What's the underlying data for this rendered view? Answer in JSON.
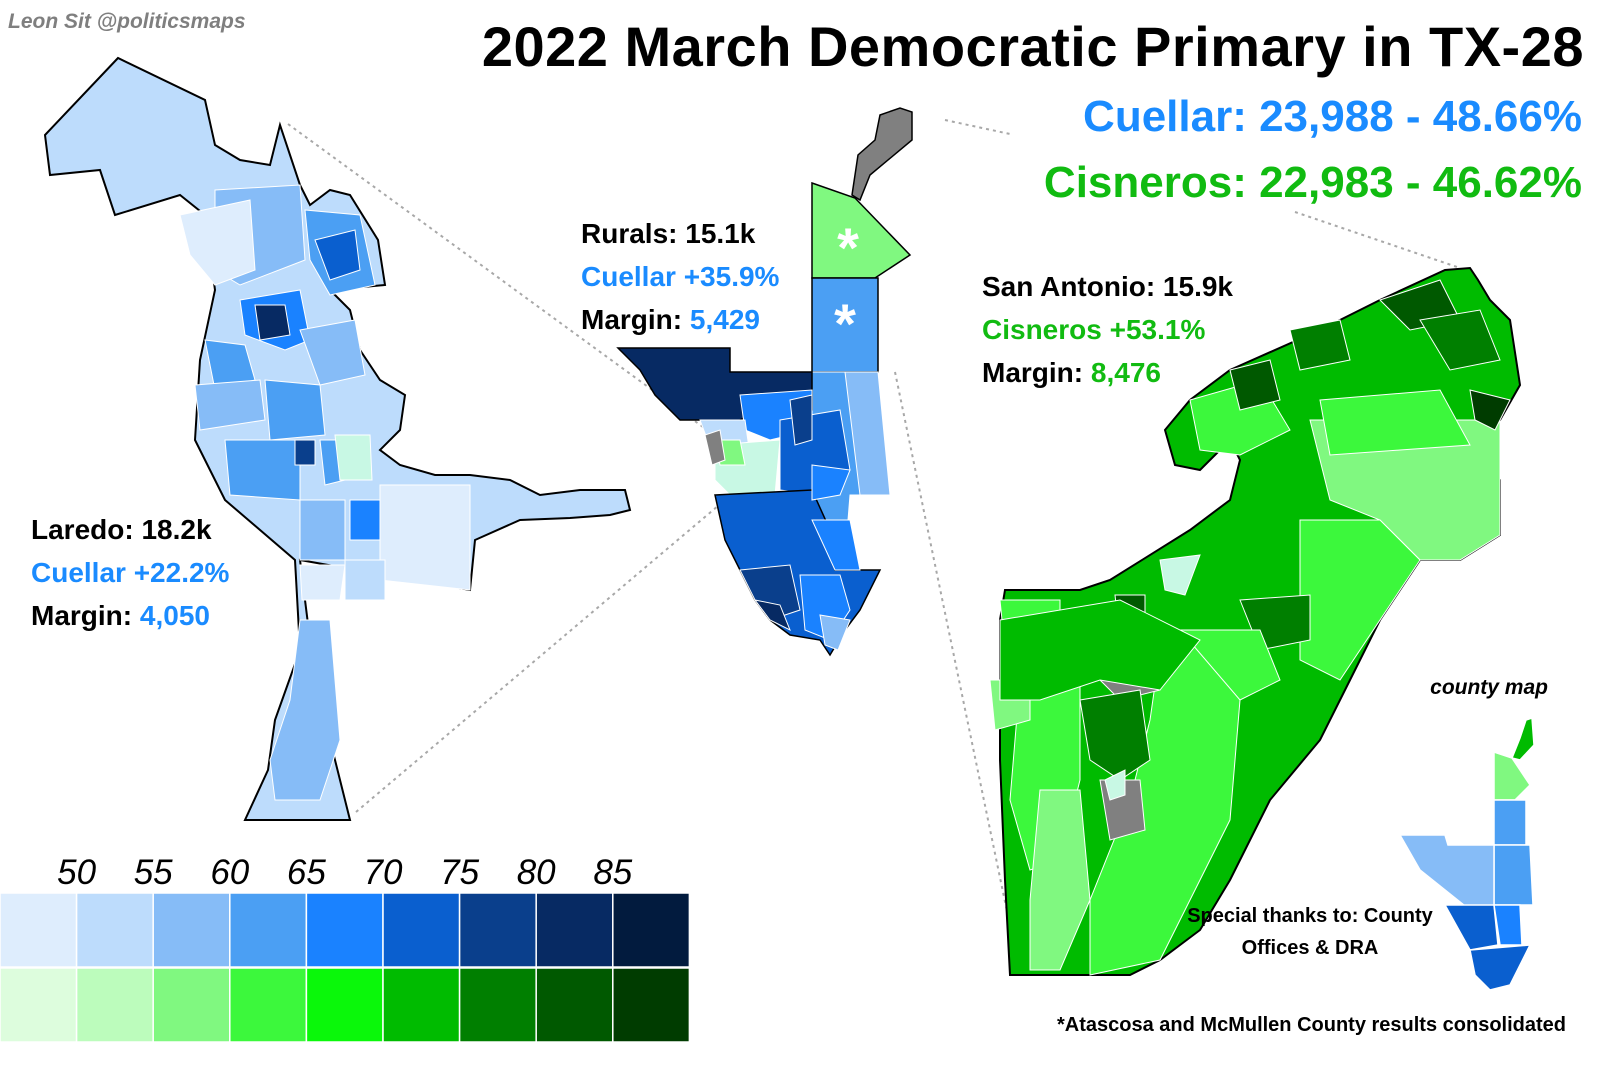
{
  "credit": "Leon Sit @politicsmaps",
  "title": "2022 March Democratic Primary in TX-28",
  "totals": {
    "cuellar": "Cuellar: 23,988 - 48.66%",
    "cisneros": "Cisneros: 22,983 - 46.62%"
  },
  "regions": {
    "laredo": {
      "name": "Laredo: 18.2k",
      "leader": "Cuellar +22.2%",
      "margin_label": "Margin:",
      "margin_value": "4,050"
    },
    "rurals": {
      "name": "Rurals: 15.1k",
      "leader": "Cuellar +35.9%",
      "margin_label": "Margin:",
      "margin_value": "5,429"
    },
    "san_antonio": {
      "name": "San Antonio: 15.9k",
      "leader": "Cisneros +53.1%",
      "margin_label": "Margin:",
      "margin_value": "8,476"
    }
  },
  "legend": {
    "thresholds": [
      "50",
      "55",
      "60",
      "65",
      "70",
      "75",
      "80",
      "85"
    ],
    "cuellar_colors": [
      "#deedfd",
      "#bddcfc",
      "#86bcf7",
      "#4b9ff3",
      "#1a82ff",
      "#0a5fcf",
      "#0a3f8c",
      "#072a63",
      "#021b3e"
    ],
    "cisneros_colors": [
      "#ddfddd",
      "#bcfcbc",
      "#80f880",
      "#3cf83c",
      "#0af80a",
      "#00bb00",
      "#007f00",
      "#005900",
      "#003c00"
    ]
  },
  "map": {
    "asterisk": "*",
    "tied_or_no_data_color": "#808080"
  },
  "county_map_caption": "county map",
  "thanks": "Special thanks to: County Offices & DRA",
  "footnote": "*Atascosa and McMullen County results consolidated"
}
